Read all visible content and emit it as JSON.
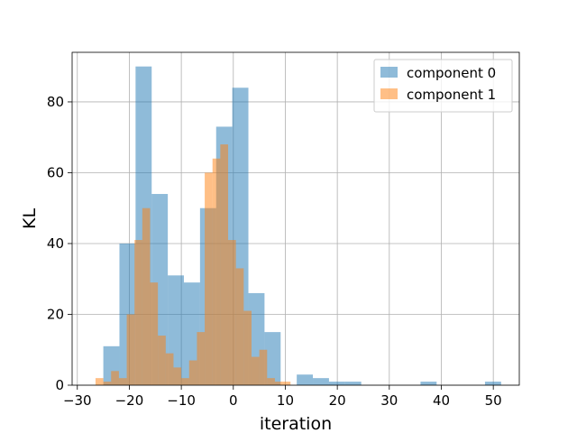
{
  "chart_data": {
    "type": "histogram",
    "xlabel": "iteration",
    "ylabel": "KL",
    "xlim": [
      -31,
      55
    ],
    "ylim": [
      0,
      94
    ],
    "xticks": [
      -30,
      -20,
      -10,
      0,
      10,
      20,
      30,
      40,
      50
    ],
    "yticks": [
      0,
      20,
      40,
      60,
      80
    ],
    "grid": true,
    "legend_position": "top-right",
    "series": [
      {
        "name": "component 0",
        "color": "#1f77b4",
        "alpha": 0.5,
        "bins": [
          {
            "x0": -25.0,
            "x1": -21.9,
            "count": 11
          },
          {
            "x0": -21.9,
            "x1": -18.8,
            "count": 40
          },
          {
            "x0": -18.8,
            "x1": -15.7,
            "count": 90
          },
          {
            "x0": -15.7,
            "x1": -12.6,
            "count": 54
          },
          {
            "x0": -12.6,
            "x1": -9.5,
            "count": 31
          },
          {
            "x0": -9.5,
            "x1": -6.4,
            "count": 29
          },
          {
            "x0": -6.4,
            "x1": -3.3,
            "count": 50
          },
          {
            "x0": -3.3,
            "x1": -0.2,
            "count": 73
          },
          {
            "x0": -0.2,
            "x1": 2.9,
            "count": 84
          },
          {
            "x0": 2.9,
            "x1": 6.0,
            "count": 26
          },
          {
            "x0": 6.0,
            "x1": 9.1,
            "count": 15
          },
          {
            "x0": 9.1,
            "x1": 12.2,
            "count": 0
          },
          {
            "x0": 12.2,
            "x1": 15.3,
            "count": 3
          },
          {
            "x0": 15.3,
            "x1": 18.4,
            "count": 2
          },
          {
            "x0": 18.4,
            "x1": 21.5,
            "count": 1
          },
          {
            "x0": 21.5,
            "x1": 24.6,
            "count": 1
          },
          {
            "x0": 36.0,
            "x1": 39.1,
            "count": 1
          },
          {
            "x0": 48.4,
            "x1": 51.5,
            "count": 1
          }
        ]
      },
      {
        "name": "component 1",
        "color": "#ff7f0e",
        "alpha": 0.5,
        "bins": [
          {
            "x0": -26.5,
            "x1": -25.0,
            "count": 2
          },
          {
            "x0": -25.0,
            "x1": -23.5,
            "count": 1
          },
          {
            "x0": -23.5,
            "x1": -22.0,
            "count": 4
          },
          {
            "x0": -22.0,
            "x1": -20.5,
            "count": 2
          },
          {
            "x0": -20.5,
            "x1": -19.0,
            "count": 20
          },
          {
            "x0": -19.0,
            "x1": -17.5,
            "count": 41
          },
          {
            "x0": -17.5,
            "x1": -16.0,
            "count": 50
          },
          {
            "x0": -16.0,
            "x1": -14.5,
            "count": 29
          },
          {
            "x0": -14.5,
            "x1": -13.0,
            "count": 14
          },
          {
            "x0": -13.0,
            "x1": -11.5,
            "count": 9
          },
          {
            "x0": -11.5,
            "x1": -10.0,
            "count": 5
          },
          {
            "x0": -10.0,
            "x1": -8.5,
            "count": 2
          },
          {
            "x0": -8.5,
            "x1": -7.0,
            "count": 7
          },
          {
            "x0": -7.0,
            "x1": -5.5,
            "count": 15
          },
          {
            "x0": -5.5,
            "x1": -4.0,
            "count": 60
          },
          {
            "x0": -4.0,
            "x1": -2.5,
            "count": 64
          },
          {
            "x0": -2.5,
            "x1": -1.0,
            "count": 68
          },
          {
            "x0": -1.0,
            "x1": 0.5,
            "count": 41
          },
          {
            "x0": 0.5,
            "x1": 2.0,
            "count": 33
          },
          {
            "x0": 2.0,
            "x1": 3.5,
            "count": 21
          },
          {
            "x0": 3.5,
            "x1": 5.0,
            "count": 8
          },
          {
            "x0": 5.0,
            "x1": 6.5,
            "count": 10
          },
          {
            "x0": 6.5,
            "x1": 8.0,
            "count": 2
          },
          {
            "x0": 8.0,
            "x1": 9.5,
            "count": 1
          },
          {
            "x0": 9.5,
            "x1": 11.0,
            "count": 1
          }
        ]
      }
    ]
  }
}
